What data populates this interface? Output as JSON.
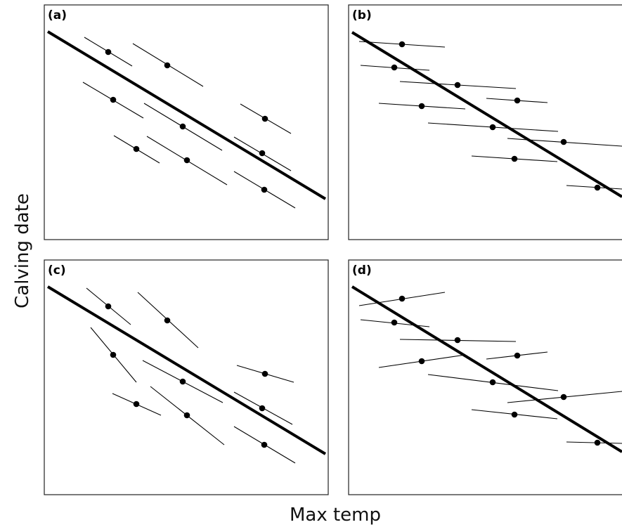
{
  "figure": {
    "y_axis_label": "Calving date",
    "x_axis_label": "Max temp"
  },
  "panels": [
    {
      "letter": "(a)"
    },
    {
      "letter": "(b)"
    },
    {
      "letter": "(c)"
    },
    {
      "letter": "(d)"
    }
  ]
}
